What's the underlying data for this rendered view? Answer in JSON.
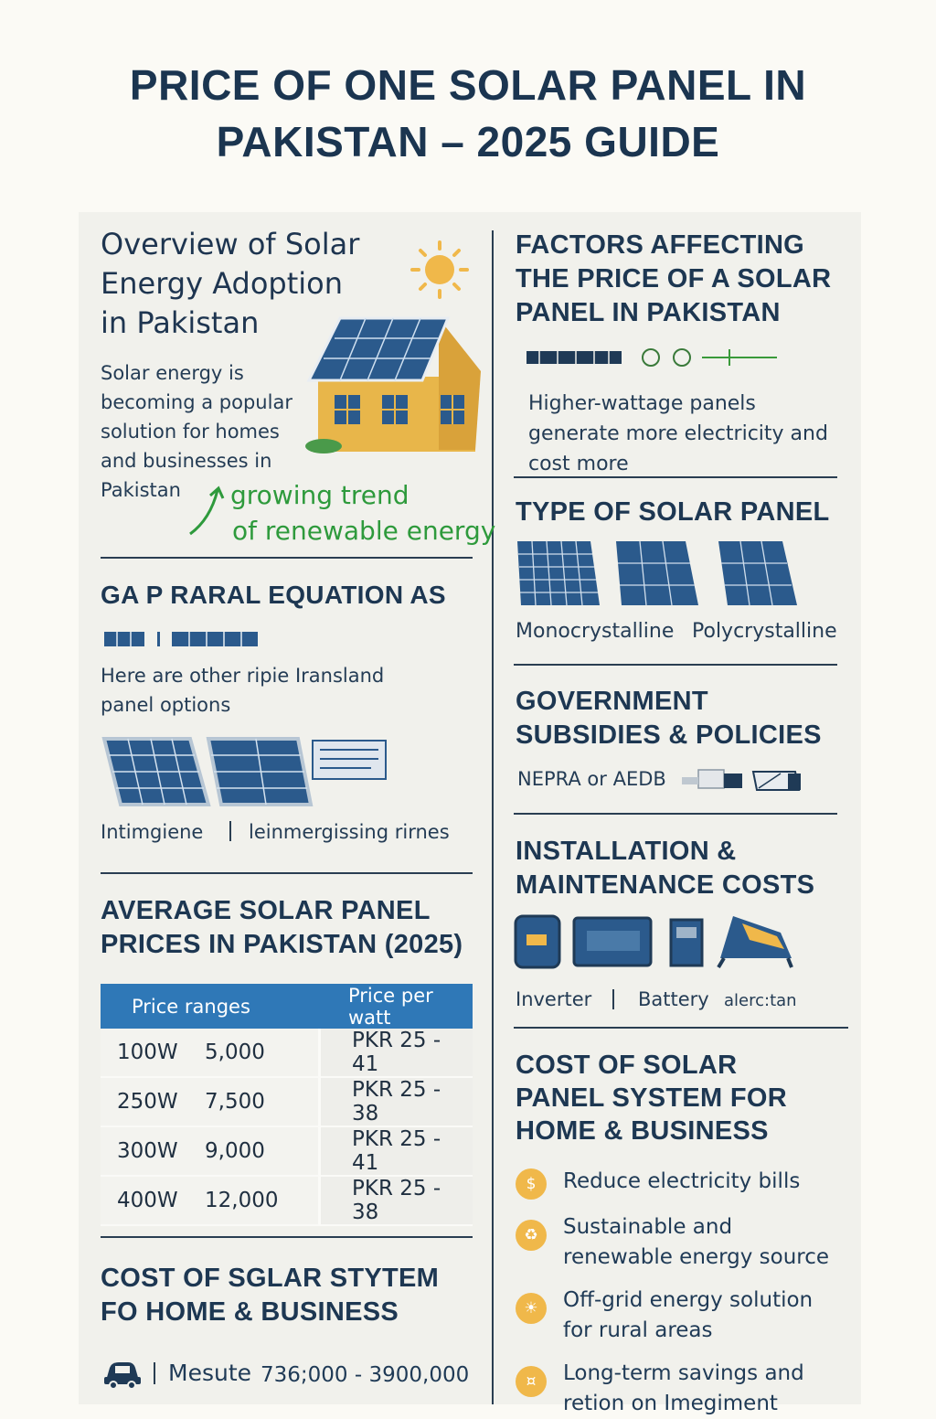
{
  "title": "PRICE OF ONE SOLAR PANEL IN PAKISTAN – 2025 GUIDE",
  "left": {
    "overview": {
      "heading": "Overview of Solar Energy Adoption in Pakistan",
      "body": "Solar energy is becoming a popular solution for homes and businesses in Pakistan",
      "trend_line1": "growing trend",
      "trend_line2": "of renewable energy"
    },
    "general": {
      "heading": "GA P RARAL EQUATION AS",
      "body": "Here are other ripie Iransland panel options",
      "labels": [
        "Intimgiene",
        "leinmergissing rirnes"
      ]
    },
    "average": {
      "heading": "AVERAGE SOLAR PANEL PRICES IN PAKISTAN (2025)",
      "columns": [
        "Price ranges",
        "Price per watt"
      ],
      "rows": [
        {
          "watt": "100W",
          "price": "5,000",
          "per_watt": "PKR 25 - 41"
        },
        {
          "watt": "250W",
          "price": "7,500",
          "per_watt": "PKR 25 - 38"
        },
        {
          "watt": "300W",
          "price": "9,000",
          "per_watt": "PKR 25 - 41"
        },
        {
          "watt": "400W",
          "price": "12,000",
          "per_watt": "PKR 25 - 38"
        }
      ]
    },
    "system": {
      "heading": "COST OF SGLAR STYTEM FO HOME & BUSINESS",
      "measure_label": "Mesute",
      "measure_value": "736;000 - 3900,000"
    }
  },
  "right": {
    "factors": {
      "heading": "FACTORS AFFECTING THE PRICE OF A SOLAR PANEL IN PAKISTAN",
      "body": "Higher-wattage panels generate more electricity and cost more"
    },
    "type": {
      "heading": "TYPE OF SOLAR PANEL",
      "labels": [
        "Monocrystalline",
        "Polycrystalline"
      ]
    },
    "government": {
      "heading": "GOVERNMENT SUBSIDIES & POLICIES",
      "body": "NEPRA or AEDB"
    },
    "installation": {
      "heading": "INSTALLATION & MAINTENANCE COSTS",
      "labels": [
        "Inverter",
        "Battery",
        "alerc:tan"
      ]
    },
    "cost": {
      "heading": "COST OF SOLAR PANEL SYSTEM FOR HOME & BUSINESS",
      "benefits": [
        "Reduce electricity bills",
        "Sustainable and renewable energy source",
        "Off-grid energy solution for rural areas",
        "Long-term savings and retion on Imegiment"
      ]
    }
  },
  "colors": {
    "navy": "#1d3752",
    "table_header": "#2f78b7",
    "accent_green": "#2e9a3c",
    "sun": "#f0b84a",
    "panel_blue": "#2b5a8c",
    "house": "#e8b64a"
  }
}
